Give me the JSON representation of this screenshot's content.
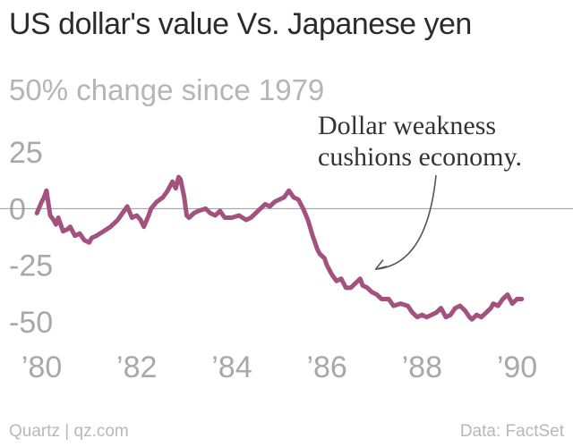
{
  "chart_data": {
    "type": "line",
    "title": "US dollar's value Vs. Japanese yen",
    "subtitle": "50% change since 1979",
    "ylabel": "",
    "xlabel": "",
    "y_ticks": [
      25,
      0,
      -25,
      -50
    ],
    "y_tick_labels": [
      "25",
      "0",
      "-25",
      "-50"
    ],
    "x_ticks": [
      1980,
      1982,
      1984,
      1986,
      1988,
      1990
    ],
    "x_tick_labels": [
      "’80",
      "’82",
      "’84",
      "’86",
      "’88",
      "’90"
    ],
    "xlim": [
      1979.5,
      1990.8
    ],
    "ylim": [
      -58,
      33
    ],
    "line_color": "#a3517f",
    "zero_line_color": "#999999",
    "series": [
      {
        "x": [
          1979.9,
          1980.0,
          1980.05,
          1980.1,
          1980.18,
          1980.25,
          1980.3,
          1980.35,
          1980.45,
          1980.55,
          1980.6,
          1980.7,
          1980.8,
          1980.9,
          1981.0,
          1981.05,
          1981.15,
          1981.3,
          1981.45,
          1981.6,
          1981.7,
          1981.8,
          1981.9,
          1982.0,
          1982.08,
          1982.15,
          1982.25,
          1982.3,
          1982.42,
          1982.55,
          1982.65,
          1982.75,
          1982.82,
          1982.88,
          1982.92,
          1983.0,
          1983.05,
          1983.1,
          1983.2,
          1983.3,
          1983.45,
          1983.55,
          1983.65,
          1983.75,
          1983.85,
          1984.0,
          1984.15,
          1984.3,
          1984.4,
          1984.5,
          1984.6,
          1984.7,
          1984.8,
          1984.9,
          1985.0,
          1985.1,
          1985.2,
          1985.3,
          1985.4,
          1985.5,
          1985.6,
          1985.7,
          1985.75,
          1985.8,
          1985.85,
          1985.95,
          1986.0,
          1986.1,
          1986.2,
          1986.3,
          1986.4,
          1986.5,
          1986.6,
          1986.7,
          1986.75,
          1986.85,
          1986.95,
          1987.05,
          1987.15,
          1987.3,
          1987.4,
          1987.55,
          1987.7,
          1987.8,
          1987.9,
          1988.0,
          1988.1,
          1988.2,
          1988.3,
          1988.4,
          1988.5,
          1988.6,
          1988.7,
          1988.8,
          1988.9,
          1989.0,
          1989.05,
          1989.15,
          1989.25,
          1989.35,
          1989.45,
          1989.5,
          1989.6,
          1989.7,
          1989.8,
          1989.9,
          1990.0,
          1990.1
        ],
        "y": [
          -2,
          3,
          5,
          8,
          -3,
          -5,
          -7,
          -4,
          -10,
          -9,
          -8,
          -12,
          -11,
          -14,
          -15,
          -13,
          -12,
          -10,
          -8,
          -5,
          -2,
          1,
          -4,
          -3,
          -5,
          -8,
          -3,
          0,
          3,
          5,
          8,
          12,
          9,
          14,
          13,
          5,
          -3,
          -4,
          -2,
          -1,
          0,
          -2,
          -3,
          -1,
          -4,
          -4,
          -3,
          -5,
          -4,
          -2,
          0,
          2,
          1,
          3,
          4,
          5,
          8,
          5,
          4,
          0,
          -5,
          -12,
          -15,
          -18,
          -20,
          -22,
          -25,
          -29,
          -32,
          -31,
          -35,
          -35,
          -33,
          -31,
          -34,
          -35,
          -37,
          -38,
          -40,
          -40,
          -43,
          -42,
          -43,
          -46,
          -48,
          -47,
          -48,
          -47,
          -46,
          -44,
          -48,
          -47,
          -44,
          -43,
          -45,
          -48,
          -49,
          -47,
          -48,
          -46,
          -44,
          -42,
          -43,
          -40,
          -38,
          -42,
          -40,
          -40
        ]
      }
    ],
    "annotation": {
      "lines": [
        "Dollar weakness",
        "cushions economy."
      ],
      "points_to": {
        "x": 1986.95,
        "y": -26
      }
    }
  },
  "footer": {
    "source_left": "Quartz | qz.com",
    "source_right": "Data: FactSet"
  }
}
